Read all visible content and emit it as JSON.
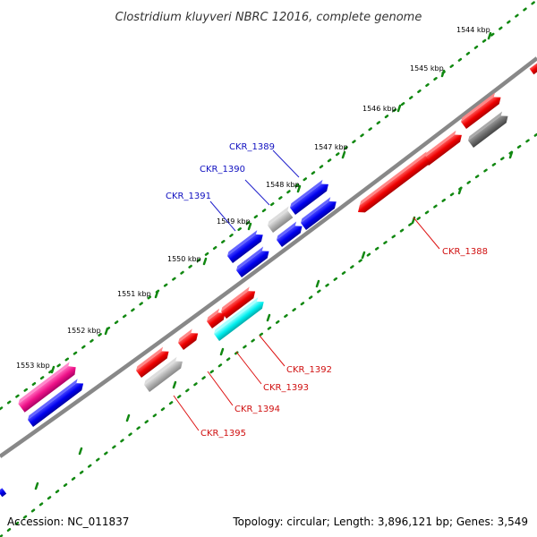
{
  "title": "Clostridium kluyveri NBRC 12016, complete genome",
  "ticks": [
    "1544 kbp",
    "1545 kbp",
    "1546 kbp",
    "1547 kbp",
    "1548 kbp",
    "1549 kbp",
    "1550 kbp",
    "1551 kbp",
    "1552 kbp",
    "1553 kbp"
  ],
  "genes": {
    "ckr_1388": "CKR_1388",
    "ckr_1389": "CKR_1389",
    "ckr_1390": "CKR_1390",
    "ckr_1391": "CKR_1391",
    "ckr_1392": "CKR_1392",
    "ckr_1393": "CKR_1393",
    "ckr_1394": "CKR_1394",
    "ckr_1395": "CKR_1395"
  },
  "footer": {
    "accession": "Accession: NC_011837",
    "summary": "Topology: circular; Length: 3,896,121 bp; Genes: 3,549"
  },
  "colors": {
    "red": "#ee0000",
    "blue": "#0000dd",
    "gray": "#aaaaaa",
    "dark_gray": "#666666",
    "cyan": "#00eeee",
    "magenta": "#ee1188",
    "dots": "#118811"
  }
}
